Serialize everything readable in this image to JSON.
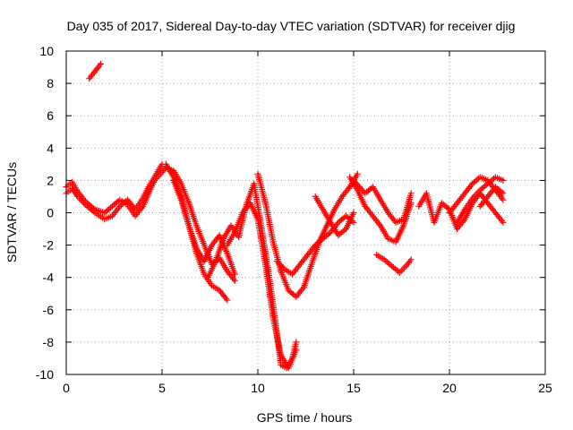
{
  "chart_data": {
    "type": "scatter",
    "title": "Day 035 of 2017, Sidereal Day-to-day VTEC variation (SDTVAR) for receiver djig",
    "xlabel": "GPS time / hours",
    "ylabel": "SDTVAR / TECUs",
    "xlim": [
      0,
      25
    ],
    "ylim": [
      -10,
      10
    ],
    "x_ticks": [
      "0",
      "5",
      "10",
      "15",
      "20",
      "25"
    ],
    "y_ticks": [
      "-10",
      "-8",
      "-6",
      "-4",
      "-2",
      "0",
      "2",
      "4",
      "6",
      "8",
      "10"
    ],
    "grid": true,
    "marker": "+",
    "color": "#ff0000",
    "series": [
      {
        "x": [
          1.2,
          1.4,
          1.6,
          1.8
        ],
        "y": [
          8.3,
          8.6,
          8.9,
          9.2
        ]
      },
      {
        "x": [
          0.0,
          0.3,
          0.6,
          1.0,
          1.5,
          2.0,
          2.4,
          2.8,
          3.2,
          3.6,
          4.0,
          4.3,
          4.6,
          5.0,
          5.2,
          5.6,
          6.0,
          6.4,
          6.8,
          7.2,
          7.6,
          8.0,
          8.4
        ],
        "y": [
          1.2,
          1.5,
          1.0,
          0.5,
          0.0,
          -0.4,
          -0.2,
          0.4,
          0.8,
          0.2,
          0.9,
          1.6,
          2.2,
          3.0,
          3.0,
          2.2,
          1.0,
          -0.8,
          -2.5,
          -3.8,
          -4.5,
          -4.8,
          -5.4
        ]
      },
      {
        "x": [
          0.0,
          0.3,
          0.6,
          1.0,
          1.5,
          2.0,
          2.4,
          2.8,
          3.2,
          3.6,
          4.0,
          4.3,
          4.6,
          5.0,
          5.2,
          5.6,
          6.0,
          6.4,
          6.8,
          7.2,
          7.6,
          8.0,
          8.4,
          8.8
        ],
        "y": [
          1.6,
          1.9,
          1.3,
          0.7,
          0.2,
          0.0,
          0.4,
          0.8,
          0.5,
          -0.2,
          0.4,
          1.2,
          2.0,
          2.5,
          2.8,
          2.6,
          1.8,
          0.6,
          -0.8,
          -2.0,
          -3.2,
          -2.8,
          -3.6,
          -4.2
        ]
      },
      {
        "x": [
          5.6,
          6.0,
          6.4,
          6.8,
          7.2,
          7.6,
          8.0,
          8.4,
          8.8
        ],
        "y": [
          2.0,
          0.8,
          -0.8,
          -2.2,
          -3.0,
          -2.0,
          -1.4,
          -2.5,
          -3.8
        ]
      },
      {
        "x": [
          7.4,
          7.8,
          8.2,
          8.6,
          9.0,
          9.4,
          9.8,
          10.2,
          10.6,
          11.0,
          11.2,
          11.5,
          11.8,
          12.0
        ],
        "y": [
          -4.0,
          -3.0,
          -1.6,
          -0.8,
          -1.5,
          0.5,
          1.8,
          -1.0,
          -4.0,
          -7.5,
          -9.4,
          -9.6,
          -9.0,
          -8.0
        ]
      },
      {
        "x": [
          8.4,
          8.8,
          9.2,
          9.6,
          10.0,
          10.4,
          10.8,
          11.2,
          11.6,
          12.0
        ],
        "y": [
          -2.0,
          -1.2,
          0.0,
          0.6,
          -0.4,
          -3.2,
          -6.5,
          -8.8,
          -9.6,
          -8.5
        ]
      },
      {
        "x": [
          10.0,
          10.4,
          10.8,
          11.2,
          11.6,
          12.0,
          12.4,
          12.8,
          13.2,
          13.6,
          14.0,
          14.4,
          14.8,
          15.2
        ],
        "y": [
          2.4,
          0.6,
          -1.8,
          -3.6,
          -4.8,
          -5.2,
          -4.6,
          -3.2,
          -1.8,
          -0.8,
          0.2,
          1.0,
          1.6,
          2.4
        ]
      },
      {
        "x": [
          11.0,
          11.4,
          11.8,
          12.2,
          12.6,
          13.0,
          13.4,
          13.8,
          14.2,
          14.6,
          15.0
        ],
        "y": [
          -3.0,
          -3.5,
          -3.8,
          -3.2,
          -2.6,
          -2.0,
          -1.6,
          -1.2,
          -0.6,
          -0.2,
          -0.6
        ]
      },
      {
        "x": [
          13.0,
          13.4,
          13.8,
          14.2,
          14.6,
          15.0
        ],
        "y": [
          1.0,
          0.2,
          -0.6,
          -1.4,
          -1.0,
          0.0
        ]
      },
      {
        "x": [
          14.8,
          15.2,
          15.6,
          16.0,
          16.4,
          16.8,
          17.2,
          17.6,
          18.0
        ],
        "y": [
          2.2,
          1.4,
          0.4,
          -0.2,
          -0.8,
          -1.6,
          -1.8,
          -0.8,
          0.6
        ]
      },
      {
        "x": [
          15.0,
          15.6,
          16.0,
          16.4,
          16.8,
          17.2,
          17.6,
          18.0
        ],
        "y": [
          2.0,
          1.2,
          1.6,
          0.8,
          0.0,
          -0.6,
          -0.4,
          1.2
        ]
      },
      {
        "x": [
          16.2,
          16.6,
          17.0,
          17.4,
          17.8,
          18.0
        ],
        "y": [
          -2.6,
          -2.9,
          -3.3,
          -3.7,
          -3.2,
          -2.9
        ]
      },
      {
        "x": [
          18.4,
          18.8,
          19.2,
          19.6,
          20.0,
          20.4,
          20.8,
          21.2,
          21.6,
          22.0,
          22.4,
          22.8
        ],
        "y": [
          0.4,
          1.2,
          -0.6,
          0.6,
          0.2,
          -1.0,
          -0.4,
          0.6,
          1.2,
          0.6,
          0.0,
          -0.6
        ]
      },
      {
        "x": [
          20.0,
          20.4,
          20.8,
          21.2,
          21.6,
          22.0,
          22.4,
          22.8
        ],
        "y": [
          0.0,
          0.6,
          1.2,
          1.8,
          2.2,
          2.0,
          1.4,
          0.8
        ]
      },
      {
        "x": [
          20.4,
          20.8,
          21.2,
          21.6,
          22.0,
          22.4,
          22.8
        ],
        "y": [
          -0.6,
          0.2,
          0.9,
          1.4,
          1.8,
          2.2,
          2.0
        ]
      },
      {
        "x": [
          21.6,
          22.0,
          22.4,
          22.8
        ],
        "y": [
          0.4,
          1.0,
          1.6,
          1.2
        ]
      }
    ]
  }
}
